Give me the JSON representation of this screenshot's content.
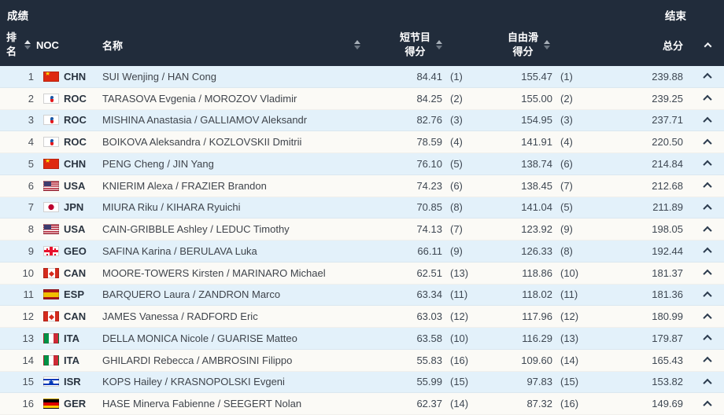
{
  "header": {
    "title": "成绩",
    "status": "结束"
  },
  "columns": {
    "rank": "排名",
    "noc": "NOC",
    "name": "名称",
    "short_program": "短节目\n得分",
    "free_skating": "自由滑\n得分",
    "total": "总分"
  },
  "icons": {
    "sort": "sort-arrows",
    "row_expand": "chevron-up"
  },
  "palette": {
    "header_bg": "#212C3B",
    "header_text": "#FFFFFF",
    "row_odd": "#FBFAF6",
    "row_even": "#E3F1FA",
    "text_main": "#3E4752",
    "caret": "#2B3B4E"
  },
  "table": {
    "rows": [
      {
        "rank": "1",
        "noc": "CHN",
        "name": "SUI Wenjing / HAN Cong",
        "sp": "84.41",
        "sp_rank": "(1)",
        "fs": "155.47",
        "fs_rank": "(1)",
        "total": "239.88"
      },
      {
        "rank": "2",
        "noc": "ROC",
        "name": "TARASOVA Evgenia / MOROZOV Vladimir",
        "sp": "84.25",
        "sp_rank": "(2)",
        "fs": "155.00",
        "fs_rank": "(2)",
        "total": "239.25"
      },
      {
        "rank": "3",
        "noc": "ROC",
        "name": "MISHINA Anastasia / GALLIAMOV Aleksandr",
        "sp": "82.76",
        "sp_rank": "(3)",
        "fs": "154.95",
        "fs_rank": "(3)",
        "total": "237.71"
      },
      {
        "rank": "4",
        "noc": "ROC",
        "name": "BOIKOVA Aleksandra / KOZLOVSKII Dmitrii",
        "sp": "78.59",
        "sp_rank": "(4)",
        "fs": "141.91",
        "fs_rank": "(4)",
        "total": "220.50"
      },
      {
        "rank": "5",
        "noc": "CHN",
        "name": "PENG Cheng / JIN Yang",
        "sp": "76.10",
        "sp_rank": "(5)",
        "fs": "138.74",
        "fs_rank": "(6)",
        "total": "214.84"
      },
      {
        "rank": "6",
        "noc": "USA",
        "name": "KNIERIM Alexa / FRAZIER Brandon",
        "sp": "74.23",
        "sp_rank": "(6)",
        "fs": "138.45",
        "fs_rank": "(7)",
        "total": "212.68"
      },
      {
        "rank": "7",
        "noc": "JPN",
        "name": "MIURA Riku / KIHARA Ryuichi",
        "sp": "70.85",
        "sp_rank": "(8)",
        "fs": "141.04",
        "fs_rank": "(5)",
        "total": "211.89"
      },
      {
        "rank": "8",
        "noc": "USA",
        "name": "CAIN-GRIBBLE Ashley / LEDUC Timothy",
        "sp": "74.13",
        "sp_rank": "(7)",
        "fs": "123.92",
        "fs_rank": "(9)",
        "total": "198.05"
      },
      {
        "rank": "9",
        "noc": "GEO",
        "name": "SAFINA Karina / BERULAVA Luka",
        "sp": "66.11",
        "sp_rank": "(9)",
        "fs": "126.33",
        "fs_rank": "(8)",
        "total": "192.44"
      },
      {
        "rank": "10",
        "noc": "CAN",
        "name": "MOORE-TOWERS Kirsten / MARINARO Michael",
        "sp": "62.51",
        "sp_rank": "(13)",
        "fs": "118.86",
        "fs_rank": "(10)",
        "total": "181.37"
      },
      {
        "rank": "11",
        "noc": "ESP",
        "name": "BARQUERO Laura / ZANDRON Marco",
        "sp": "63.34",
        "sp_rank": "(11)",
        "fs": "118.02",
        "fs_rank": "(11)",
        "total": "181.36"
      },
      {
        "rank": "12",
        "noc": "CAN",
        "name": "JAMES Vanessa / RADFORD Eric",
        "sp": "63.03",
        "sp_rank": "(12)",
        "fs": "117.96",
        "fs_rank": "(12)",
        "total": "180.99"
      },
      {
        "rank": "13",
        "noc": "ITA",
        "name": "DELLA MONICA Nicole / GUARISE Matteo",
        "sp": "63.58",
        "sp_rank": "(10)",
        "fs": "116.29",
        "fs_rank": "(13)",
        "total": "179.87"
      },
      {
        "rank": "14",
        "noc": "ITA",
        "name": "GHILARDI Rebecca / AMBROSINI Filippo",
        "sp": "55.83",
        "sp_rank": "(16)",
        "fs": "109.60",
        "fs_rank": "(14)",
        "total": "165.43"
      },
      {
        "rank": "15",
        "noc": "ISR",
        "name": "KOPS Hailey / KRASNOPOLSKI Evgeni",
        "sp": "55.99",
        "sp_rank": "(15)",
        "fs": "97.83",
        "fs_rank": "(15)",
        "total": "153.82"
      },
      {
        "rank": "16",
        "noc": "GER",
        "name": "HASE Minerva Fabienne / SEEGERT Nolan",
        "sp": "62.37",
        "sp_rank": "(14)",
        "fs": "87.32",
        "fs_rank": "(16)",
        "total": "149.69"
      }
    ]
  }
}
